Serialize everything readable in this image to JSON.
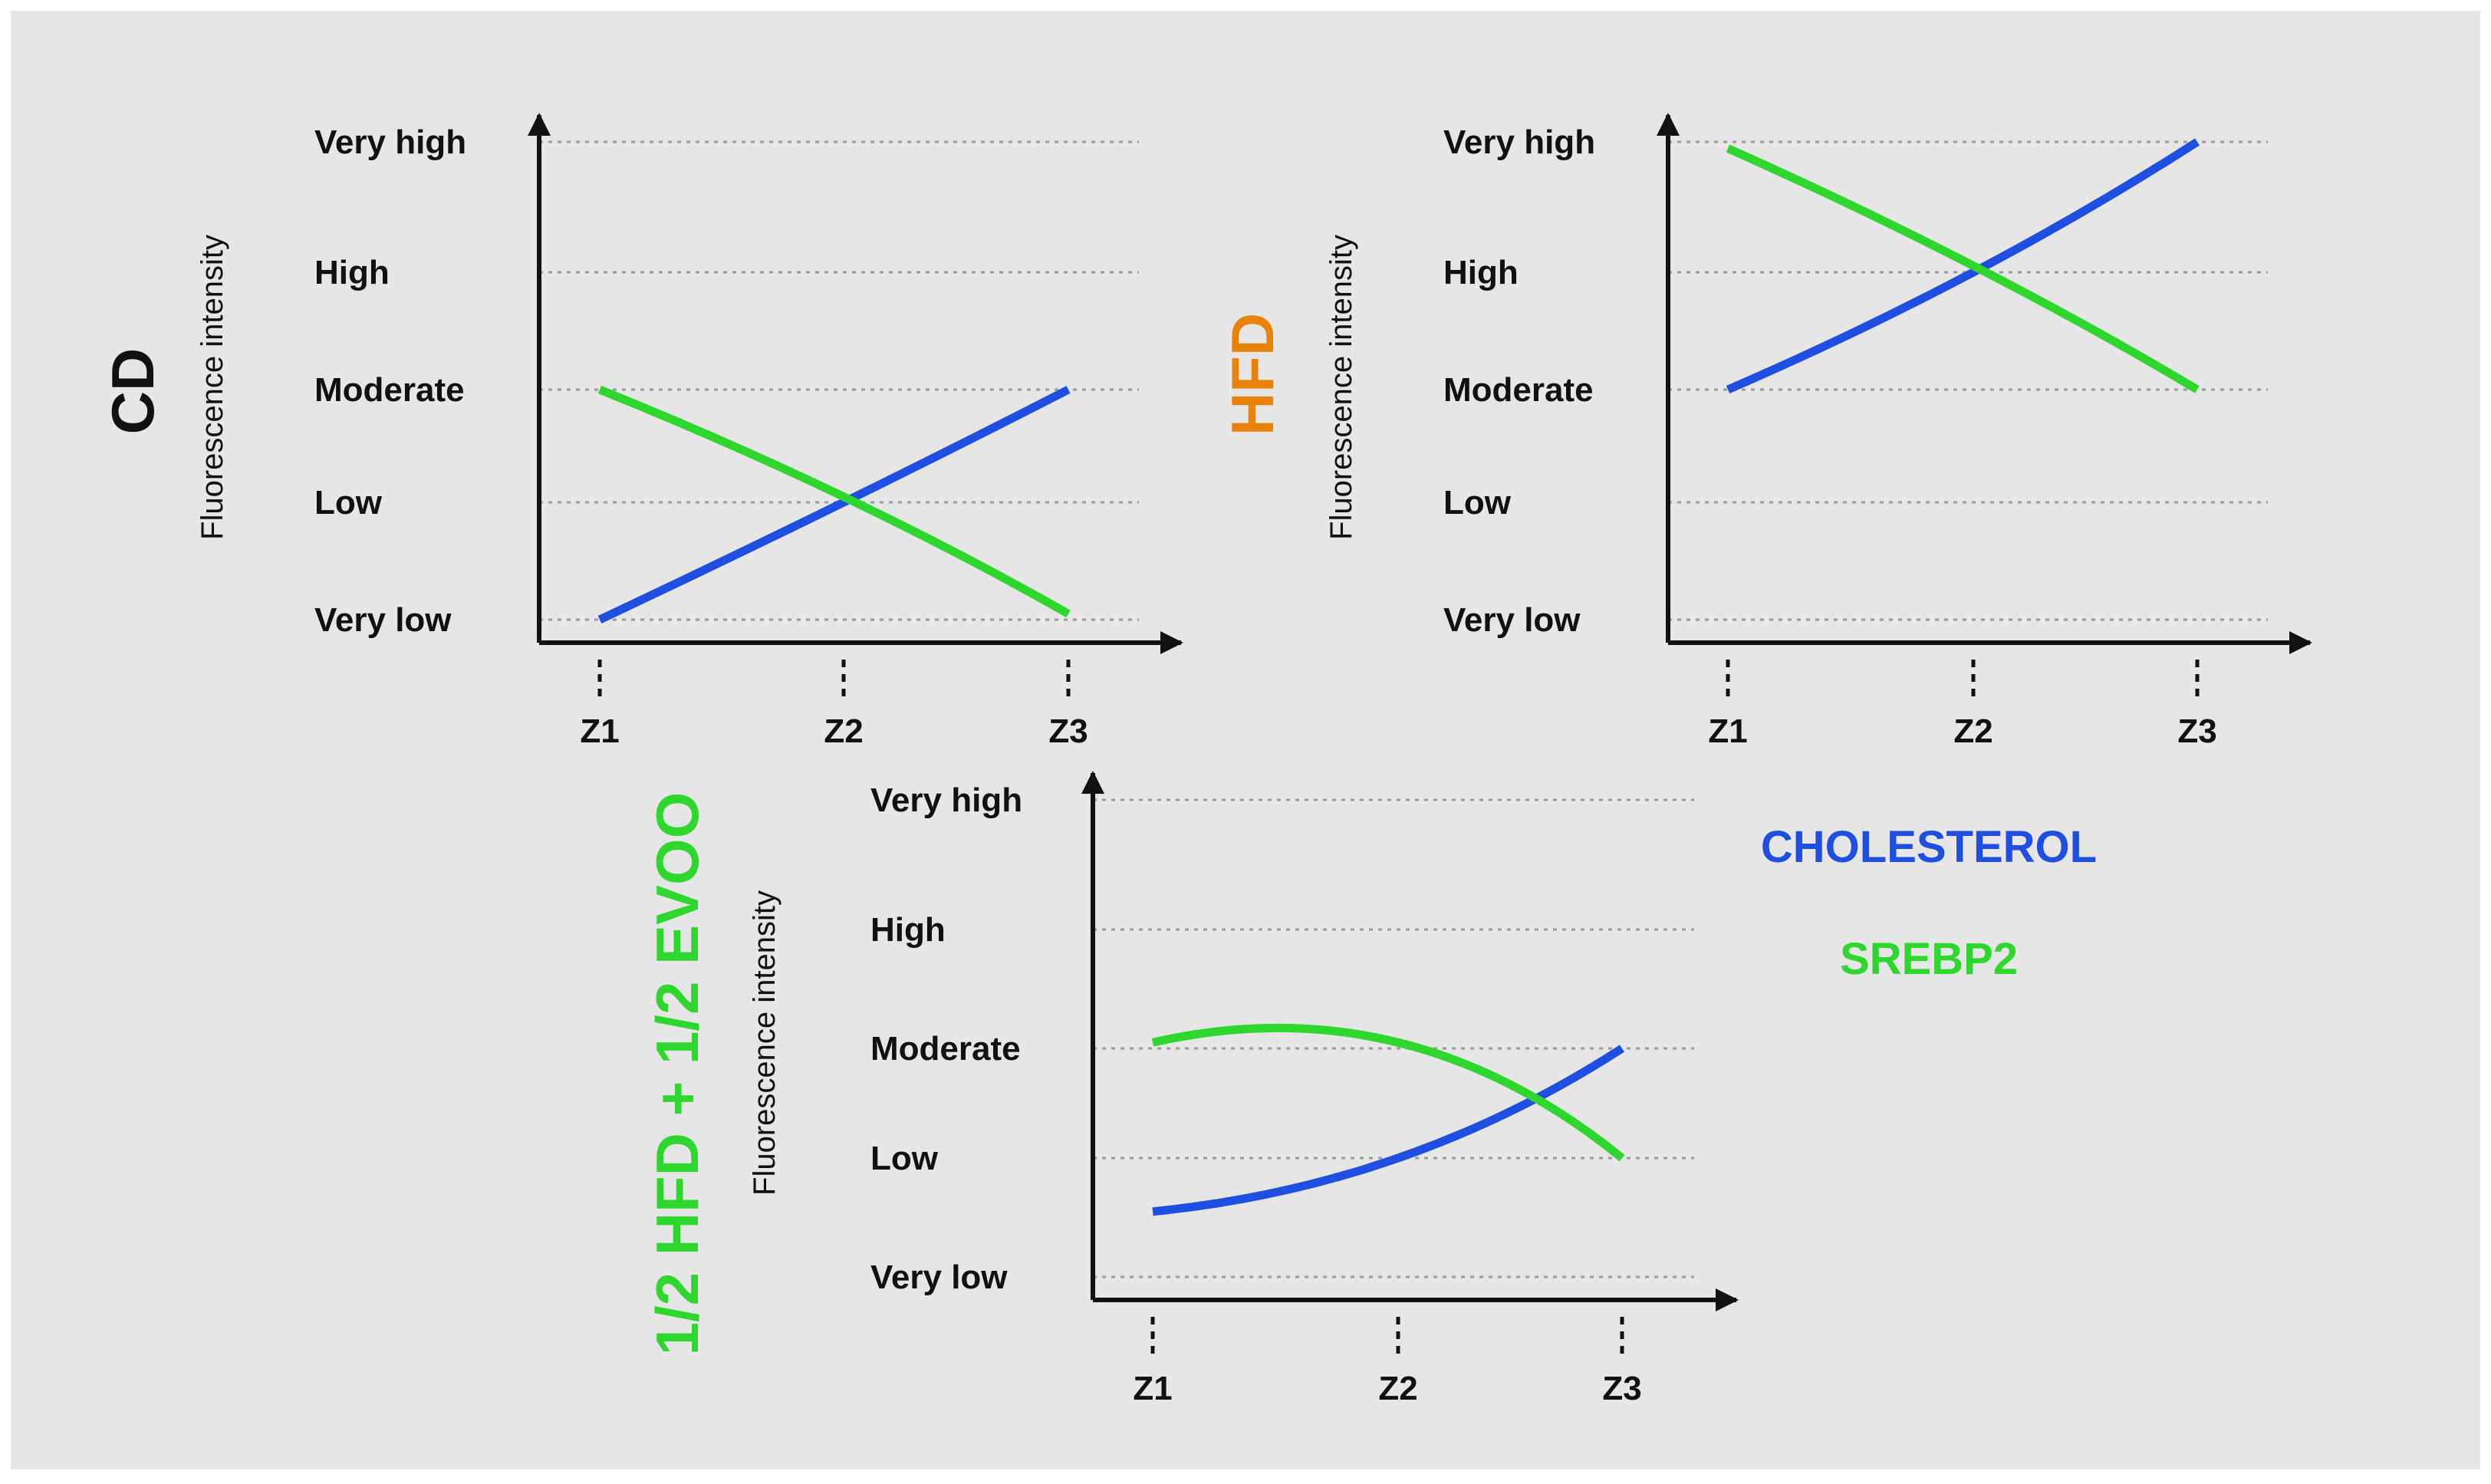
{
  "legend": [
    {
      "name": "CHOLESTEROL",
      "color": "#1f4fe0"
    },
    {
      "name": "SREBP2",
      "color": "#2ed62e"
    }
  ],
  "chart_data": [
    {
      "type": "line",
      "title": "CD",
      "title_color": "#111111",
      "ylabel": "Fluorescence intensity",
      "yticks": [
        "Very low",
        "Low",
        "Moderate",
        "High",
        "Very high"
      ],
      "categories": [
        "Z1",
        "Z2",
        "Z3"
      ],
      "ylim": [
        1,
        5
      ],
      "series": [
        {
          "name": "CHOLESTEROL",
          "color": "#1f4fe0",
          "values": [
            1.0,
            2.0,
            3.0
          ]
        },
        {
          "name": "SREBP2",
          "color": "#2ed62e",
          "values": [
            3.0,
            2.05,
            1.05
          ]
        }
      ]
    },
    {
      "type": "line",
      "title": "HFD",
      "title_color": "#e8840c",
      "ylabel": "Fluorescence intensity",
      "yticks": [
        "Very low",
        "Low",
        "Moderate",
        "High",
        "Very high"
      ],
      "categories": [
        "Z1",
        "Z2",
        "Z3"
      ],
      "ylim": [
        1,
        5
      ],
      "series": [
        {
          "name": "CHOLESTEROL",
          "color": "#1f4fe0",
          "values": [
            3.0,
            4.0,
            5.0
          ]
        },
        {
          "name": "SREBP2",
          "color": "#2ed62e",
          "values": [
            4.95,
            4.05,
            3.0
          ]
        }
      ]
    },
    {
      "type": "line",
      "title": "1/2 HFD + 1/2 EVOO",
      "title_color": "#2ed62e",
      "ylabel": "Fluorescence intensity",
      "yticks": [
        "Very low",
        "Low",
        "Moderate",
        "High",
        "Very high"
      ],
      "categories": [
        "Z1",
        "Z2",
        "Z3"
      ],
      "ylim": [
        1,
        5
      ],
      "series": [
        {
          "name": "CHOLESTEROL",
          "color": "#1f4fe0",
          "values": [
            1.55,
            2.0,
            3.0
          ]
        },
        {
          "name": "SREBP2",
          "color": "#2ed62e",
          "values": [
            3.05,
            3.05,
            2.0
          ]
        }
      ]
    }
  ]
}
